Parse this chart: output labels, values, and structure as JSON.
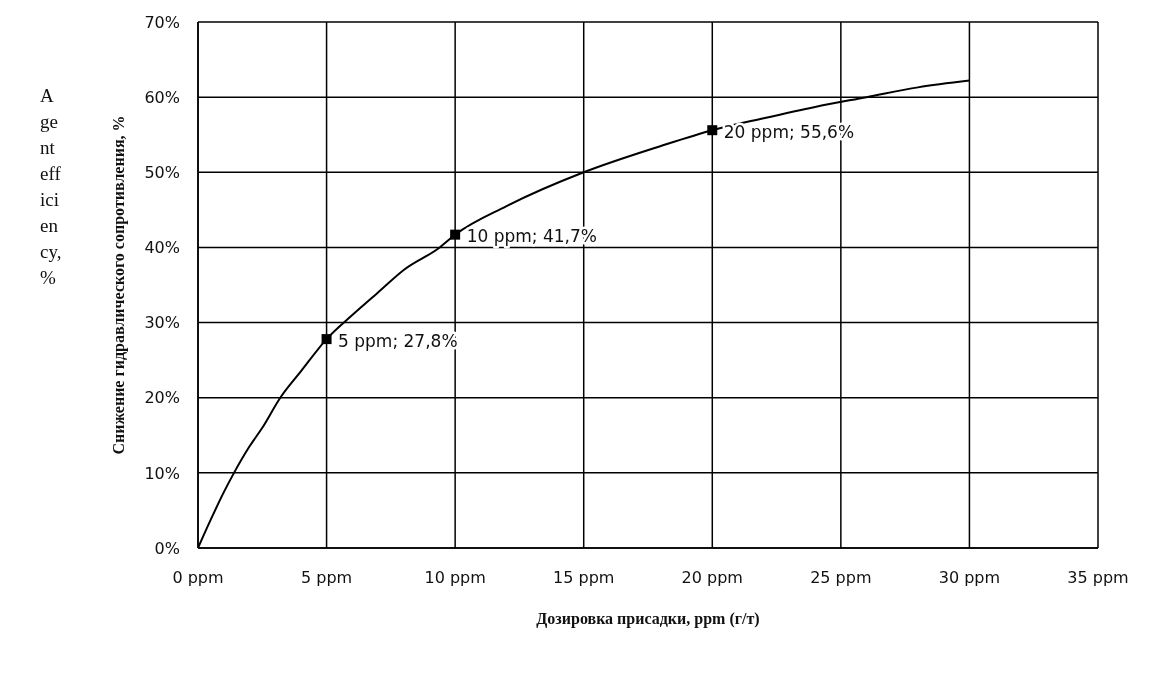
{
  "chart_data": {
    "type": "line",
    "xlabel": "Дозировка присадки, ppm (г/т)",
    "ylabel": "Снижение гидравлического сопротивления, %",
    "annotations": [
      "Agent efficiency, %"
    ],
    "series": [
      {
        "color": "#000000",
        "marker": "none",
        "x": [
          0,
          0.5,
          1,
          1.4,
          2,
          2.5,
          3.2,
          4,
          5,
          6,
          7,
          8,
          9.4,
          10,
          12,
          15,
          18,
          20,
          22,
          24,
          26,
          28,
          30
        ],
        "values": [
          0,
          3.8,
          7.4,
          10,
          13.5,
          16,
          20,
          23.5,
          27.8,
          31,
          34,
          37,
          40,
          41.7,
          45.5,
          50,
          53.5,
          55.6,
          57.2,
          58.7,
          60,
          61.3,
          62.2
        ]
      },
      {
        "type": "scatter",
        "color": "#000000",
        "marker": "square",
        "x": [
          5,
          10,
          20
        ],
        "values": [
          27.8,
          41.7,
          55.6
        ],
        "value_labels": [
          "5 ppm; 27,8%",
          "10 ppm; 41,7%",
          "20 ppm; 55,6%"
        ]
      }
    ],
    "xlim": [
      0,
      35
    ],
    "xticks": [
      {
        "value": 0,
        "label": "0 ppm"
      },
      {
        "value": 5,
        "label": "5 ppm"
      },
      {
        "value": 10,
        "label": "10 ppm"
      },
      {
        "value": 15,
        "label": "15 ppm"
      },
      {
        "value": 20,
        "label": "20 ppm"
      },
      {
        "value": 25,
        "label": "25 ppm"
      },
      {
        "value": 30,
        "label": "30 ppm"
      },
      {
        "value": 35,
        "label": "35 ppm"
      }
    ],
    "ylim": [
      0,
      70
    ],
    "yticks": [
      {
        "value": 0,
        "label": "0%"
      },
      {
        "value": 10,
        "label": "10%"
      },
      {
        "value": 20,
        "label": "20%"
      },
      {
        "value": 30,
        "label": "30%"
      },
      {
        "value": 40,
        "label": "40%"
      },
      {
        "value": 50,
        "label": "50%"
      },
      {
        "value": 60,
        "label": "60%"
      },
      {
        "value": 70,
        "label": "70%"
      }
    ],
    "grid": true,
    "legend": false
  }
}
